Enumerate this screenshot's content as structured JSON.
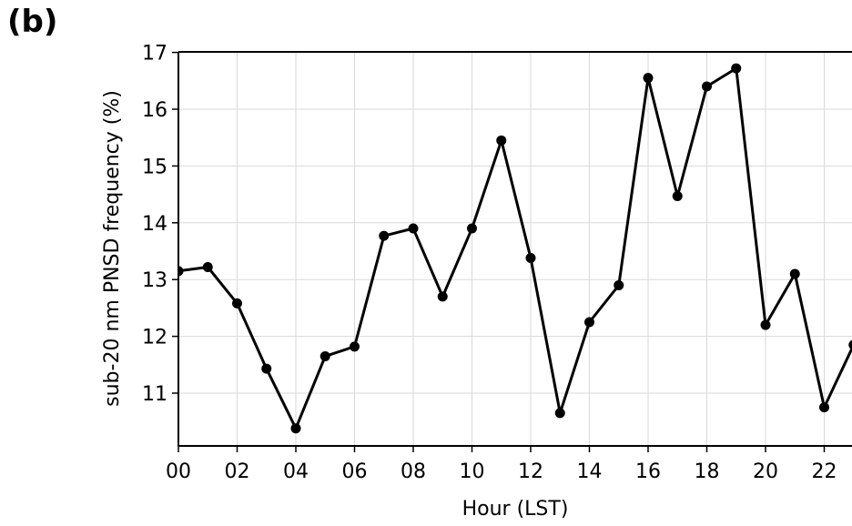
{
  "panel_label": "(b)",
  "chart_data": {
    "type": "line",
    "xlabel": "Hour (LST)",
    "ylabel": "sub-20 nm PNSD frequency (%)",
    "xlim": [
      0,
      23
    ],
    "ylim": [
      10.1,
      17
    ],
    "x_ticks": [
      "00",
      "02",
      "04",
      "06",
      "08",
      "10",
      "12",
      "14",
      "16",
      "18",
      "20",
      "22"
    ],
    "x_tick_values": [
      0,
      2,
      4,
      6,
      8,
      10,
      12,
      14,
      16,
      18,
      20,
      22
    ],
    "y_ticks": [
      11,
      12,
      13,
      14,
      15,
      16,
      17
    ],
    "grid": true,
    "line_color": "#000000",
    "series": [
      {
        "x": [
          0,
          1,
          2,
          3,
          4,
          5,
          6,
          7,
          8,
          9,
          10,
          11,
          12,
          13,
          14,
          15,
          16,
          17,
          18,
          19,
          20,
          21,
          22,
          23
        ],
        "values": [
          13.15,
          13.22,
          12.58,
          11.43,
          10.38,
          11.65,
          11.82,
          13.77,
          13.9,
          12.7,
          13.9,
          15.45,
          13.38,
          10.65,
          12.25,
          12.9,
          16.55,
          14.47,
          16.4,
          16.72,
          12.2,
          13.1,
          10.75,
          11.85
        ]
      }
    ]
  }
}
